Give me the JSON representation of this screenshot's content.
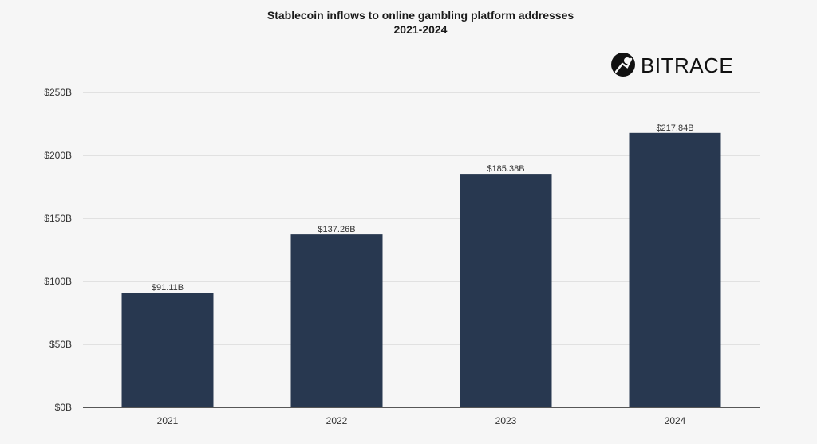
{
  "chart_data": {
    "type": "bar",
    "title_lines": [
      "Stablecoin inflows to online gambling platform addresses",
      "2021-2024"
    ],
    "categories": [
      "2021",
      "2022",
      "2023",
      "2024"
    ],
    "values": [
      91.11,
      137.26,
      185.38,
      217.84
    ],
    "value_labels": [
      "$91.11B",
      "$137.26B",
      "$185.38B",
      "$217.84B"
    ],
    "y_ticks": [
      0,
      50,
      100,
      150,
      200,
      250
    ],
    "y_tick_labels": [
      "$0B",
      "$50B",
      "$100B",
      "$150B",
      "$200B",
      "$250B"
    ],
    "ylim": [
      0,
      250
    ],
    "xlabel": "",
    "ylabel": "",
    "grid": true,
    "legend": "none"
  },
  "brand": {
    "name": "BITRACE",
    "icon": "bitrace-logo-icon"
  },
  "colors": {
    "bar": "#283850",
    "grid": "#cccccc",
    "axis": "#222222",
    "background": "#f6f6f6",
    "text": "#333333"
  }
}
